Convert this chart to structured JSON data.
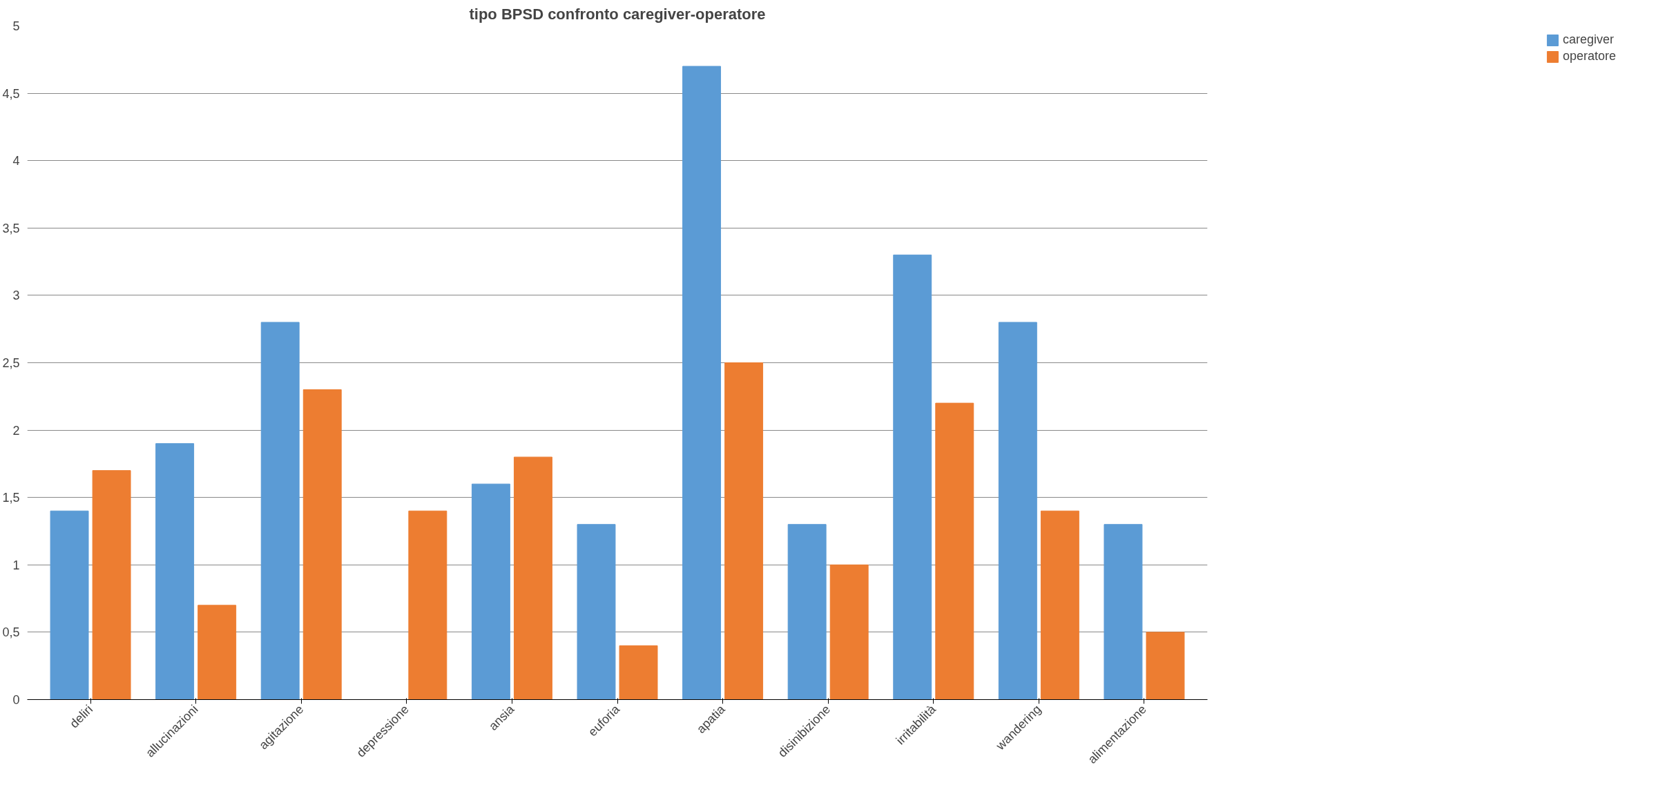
{
  "chart_data": {
    "type": "bar",
    "title": "tipo BPSD confronto caregiver-operatore",
    "categories": [
      "deliri",
      "allucinazioni",
      "agitazione",
      "depressione",
      "ansia",
      "euforia",
      "apatia",
      "disinibizione",
      "irritabilità",
      "wandering",
      "alimentazione"
    ],
    "series": [
      {
        "name": "caregiver",
        "color": "#5b9bd5",
        "values": [
          1.4,
          1.9,
          2.8,
          0,
          1.6,
          1.3,
          4.7,
          1.3,
          3.3,
          2.8,
          1.3
        ]
      },
      {
        "name": "operatore",
        "color": "#ed7d31",
        "values": [
          1.7,
          0.7,
          2.3,
          1.4,
          1.8,
          0.4,
          2.5,
          1.0,
          2.2,
          1.4,
          0.5
        ]
      }
    ],
    "ylim": [
      0,
      5
    ],
    "yticks": [
      0,
      {
        "value": 0.5,
        "label": "0,5"
      },
      1,
      {
        "value": 1.5,
        "label": "1,5"
      },
      2,
      {
        "value": 2.5,
        "label": "2,5"
      },
      3,
      {
        "value": 3.5,
        "label": "3,5"
      },
      4,
      {
        "value": 4.5,
        "label": "4,5"
      },
      5
    ],
    "grid": "y",
    "legend": "right"
  }
}
